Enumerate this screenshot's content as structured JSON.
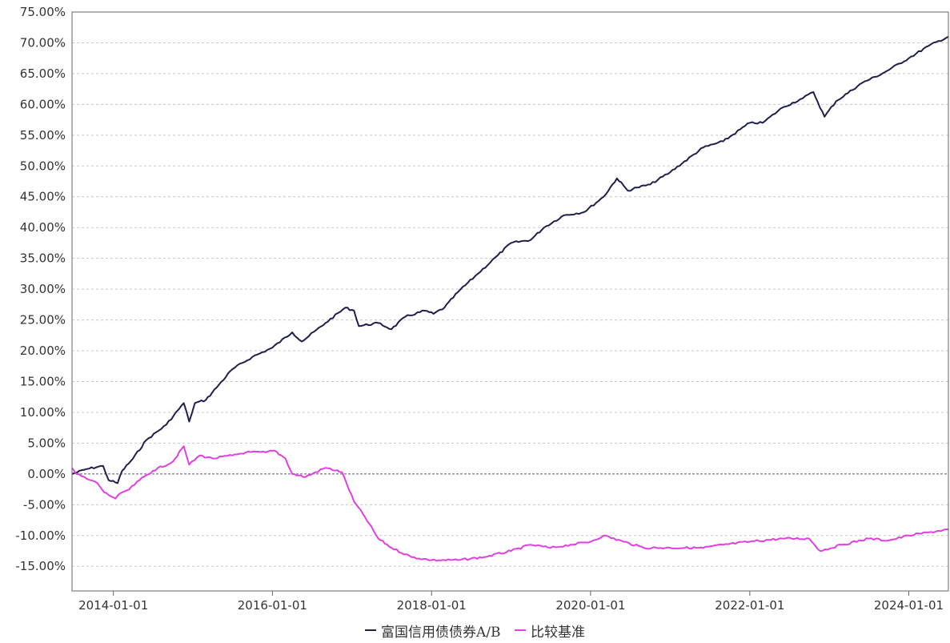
{
  "chart_data": {
    "type": "line",
    "title": "",
    "xlabel": "",
    "ylabel": "",
    "x_ticks": [
      "2014-01-01",
      "2016-01-01",
      "2018-01-01",
      "2020-01-01",
      "2022-01-01",
      "2024-01-01"
    ],
    "y_ticks": [
      "75.00%",
      "70.00%",
      "65.00%",
      "60.00%",
      "55.00%",
      "50.00%",
      "45.00%",
      "40.00%",
      "35.00%",
      "30.00%",
      "25.00%",
      "20.00%",
      "15.00%",
      "10.00%",
      "5.00%",
      "0.00%",
      "-5.00%",
      "-10.00%",
      "-15.00%"
    ],
    "ylim": [
      -19,
      75
    ],
    "xlim": [
      "2013-06-25",
      "2024-07-01"
    ],
    "grid": true,
    "legend_position": "bottom-center",
    "series": [
      {
        "name": "富国信用债债券A/B",
        "color": "#1f1f4f",
        "points": [
          [
            "2013-06-25",
            0.0
          ],
          [
            "2013-09-01",
            0.8
          ],
          [
            "2013-11-15",
            1.3
          ],
          [
            "2013-12-10",
            -1.0
          ],
          [
            "2014-01-20",
            -1.5
          ],
          [
            "2014-02-10",
            0.5
          ],
          [
            "2014-04-01",
            2.5
          ],
          [
            "2014-06-01",
            5.5
          ],
          [
            "2014-09-01",
            8.0
          ],
          [
            "2014-11-20",
            11.5
          ],
          [
            "2014-12-15",
            8.5
          ],
          [
            "2015-01-10",
            11.5
          ],
          [
            "2015-03-01",
            12.0
          ],
          [
            "2015-05-01",
            14.5
          ],
          [
            "2015-07-01",
            17.0
          ],
          [
            "2015-10-01",
            19.0
          ],
          [
            "2016-01-01",
            20.5
          ],
          [
            "2016-04-01",
            23.0
          ],
          [
            "2016-05-15",
            21.5
          ],
          [
            "2016-09-01",
            24.5
          ],
          [
            "2016-12-01",
            27.0
          ],
          [
            "2017-01-10",
            26.5
          ],
          [
            "2017-02-01",
            24.0
          ],
          [
            "2017-05-01",
            24.5
          ],
          [
            "2017-07-01",
            23.5
          ],
          [
            "2017-09-01",
            25.5
          ],
          [
            "2017-12-01",
            26.5
          ],
          [
            "2018-01-10",
            26.0
          ],
          [
            "2018-03-01",
            27.0
          ],
          [
            "2018-05-01",
            29.5
          ],
          [
            "2018-08-01",
            32.5
          ],
          [
            "2018-11-01",
            35.5
          ],
          [
            "2019-01-01",
            37.5
          ],
          [
            "2019-04-01",
            38.0
          ],
          [
            "2019-06-01",
            40.0
          ],
          [
            "2019-09-01",
            42.0
          ],
          [
            "2019-12-01",
            42.5
          ],
          [
            "2020-03-01",
            45.0
          ],
          [
            "2020-05-01",
            48.0
          ],
          [
            "2020-06-20",
            46.0
          ],
          [
            "2020-08-01",
            46.5
          ],
          [
            "2020-10-01",
            47.0
          ],
          [
            "2021-01-01",
            49.0
          ],
          [
            "2021-06-01",
            53.0
          ],
          [
            "2021-09-01",
            54.0
          ],
          [
            "2022-01-01",
            57.0
          ],
          [
            "2022-03-01",
            57.0
          ],
          [
            "2022-06-01",
            59.5
          ],
          [
            "2022-09-01",
            61.0
          ],
          [
            "2022-10-20",
            62.0
          ],
          [
            "2022-12-10",
            58.0
          ],
          [
            "2023-02-01",
            60.5
          ],
          [
            "2023-06-01",
            63.5
          ],
          [
            "2023-09-01",
            65.0
          ],
          [
            "2024-01-01",
            67.5
          ],
          [
            "2024-04-01",
            69.5
          ],
          [
            "2024-07-01",
            71.0
          ]
        ]
      },
      {
        "name": "比较基准",
        "color": "#e040e0",
        "points": [
          [
            "2013-06-25",
            1.0
          ],
          [
            "2013-07-15",
            0.0
          ],
          [
            "2013-09-01",
            -0.8
          ],
          [
            "2013-10-20",
            -1.5
          ],
          [
            "2013-11-20",
            -3.0
          ],
          [
            "2014-01-10",
            -4.0
          ],
          [
            "2014-02-10",
            -3.0
          ],
          [
            "2014-03-15",
            -2.5
          ],
          [
            "2014-05-01",
            -1.0
          ],
          [
            "2014-07-01",
            0.5
          ],
          [
            "2014-10-01",
            2.0
          ],
          [
            "2014-11-20",
            4.5
          ],
          [
            "2014-12-15",
            1.5
          ],
          [
            "2015-02-01",
            3.0
          ],
          [
            "2015-04-01",
            2.5
          ],
          [
            "2015-07-01",
            3.0
          ],
          [
            "2015-09-01",
            3.5
          ],
          [
            "2015-12-01",
            3.5
          ],
          [
            "2016-01-10",
            3.8
          ],
          [
            "2016-03-01",
            2.5
          ],
          [
            "2016-04-01",
            0.0
          ],
          [
            "2016-06-01",
            -0.5
          ],
          [
            "2016-09-01",
            1.0
          ],
          [
            "2016-11-15",
            0.3
          ],
          [
            "2017-01-10",
            -4.5
          ],
          [
            "2017-03-01",
            -7.0
          ],
          [
            "2017-05-01",
            -10.5
          ],
          [
            "2017-07-01",
            -12.0
          ],
          [
            "2017-10-01",
            -13.5
          ],
          [
            "2018-01-01",
            -14.0
          ],
          [
            "2018-05-01",
            -14.0
          ],
          [
            "2018-09-01",
            -13.5
          ],
          [
            "2019-01-01",
            -12.5
          ],
          [
            "2019-04-01",
            -11.5
          ],
          [
            "2019-07-01",
            -12.0
          ],
          [
            "2019-10-01",
            -11.5
          ],
          [
            "2020-01-01",
            -11.0
          ],
          [
            "2020-03-01",
            -10.0
          ],
          [
            "2020-06-01",
            -11.0
          ],
          [
            "2020-09-01",
            -12.0
          ],
          [
            "2021-01-01",
            -12.0
          ],
          [
            "2021-06-01",
            -12.0
          ],
          [
            "2021-09-01",
            -11.5
          ],
          [
            "2022-01-01",
            -11.0
          ],
          [
            "2022-06-01",
            -10.5
          ],
          [
            "2022-10-01",
            -10.5
          ],
          [
            "2022-11-20",
            -12.5
          ],
          [
            "2023-03-01",
            -11.5
          ],
          [
            "2023-07-01",
            -10.5
          ],
          [
            "2023-10-01",
            -10.8
          ],
          [
            "2024-01-01",
            -10.0
          ],
          [
            "2024-04-01",
            -9.5
          ],
          [
            "2024-07-01",
            -9.0
          ]
        ]
      }
    ]
  }
}
